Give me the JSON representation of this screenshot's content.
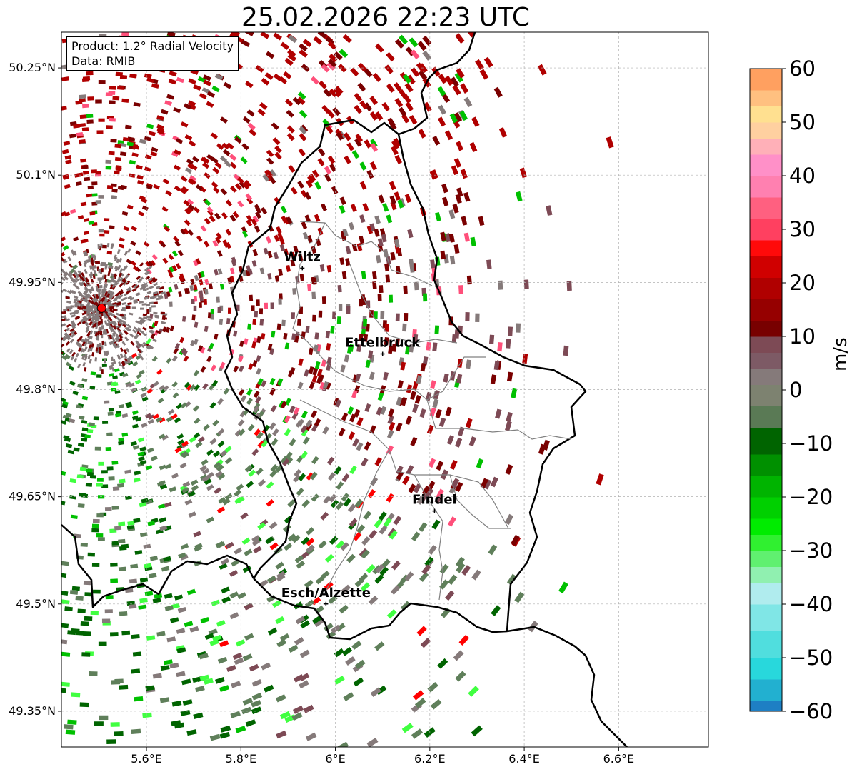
{
  "title": "25.02.2026 22:23 UTC",
  "info": {
    "product": "Product: 1.2° Radial Velocity",
    "data_source": "Data: RMIB"
  },
  "map": {
    "lon_range": [
      5.42,
      6.79
    ],
    "lat_range": [
      49.3,
      50.3
    ],
    "lon_ticks": [
      "5.6°E",
      "5.8°E",
      "6°E",
      "6.2°E",
      "6.4°E",
      "6.6°E"
    ],
    "lon_tick_values": [
      5.6,
      5.8,
      6.0,
      6.2,
      6.4,
      6.6
    ],
    "lat_ticks": [
      "50.25°N",
      "50.1°N",
      "49.95°N",
      "49.8°N",
      "49.65°N",
      "49.5°N",
      "49.35°N"
    ],
    "lat_tick_values": [
      50.25,
      50.1,
      49.95,
      49.8,
      49.65,
      49.5,
      49.35
    ],
    "radar_site": {
      "lon": 5.505,
      "lat": 49.914
    },
    "cities": [
      {
        "name": "Wiltz",
        "lon": 5.93,
        "lat": 49.97
      },
      {
        "name": "Ettelbruck",
        "lon": 6.1,
        "lat": 49.85
      },
      {
        "name": "Findel",
        "lon": 6.21,
        "lat": 49.63
      },
      {
        "name": "Esch/Alzette",
        "lon": 5.98,
        "lat": 49.5
      }
    ],
    "grid": true
  },
  "colorbar": {
    "label": "m/s",
    "range": [
      -60,
      60
    ],
    "ticks": [
      "60",
      "50",
      "40",
      "30",
      "20",
      "10",
      "0",
      "−10",
      "−20",
      "−30",
      "−40",
      "−50",
      "−60"
    ],
    "tick_values": [
      60,
      50,
      40,
      30,
      20,
      10,
      0,
      -10,
      -20,
      -30,
      -40,
      -50,
      -60
    ]
  },
  "colors": {
    "inbound_dark": "#006400",
    "inbound_mid": "#00c000",
    "inbound_light": "#40ff40",
    "near_zero_green": "#5f7f5a",
    "near_zero_gray": "#857a7a",
    "near_zero_mauve": "#7d4a55",
    "outbound_dark": "#7a0000",
    "outbound_mid": "#b00000",
    "outbound_bright": "#ff0000",
    "outbound_pink": "#ff4f7a",
    "outbound_light_pink": "#ff88c8",
    "cyan": "#30d8d8",
    "radar_marker": "#ff0000"
  }
}
